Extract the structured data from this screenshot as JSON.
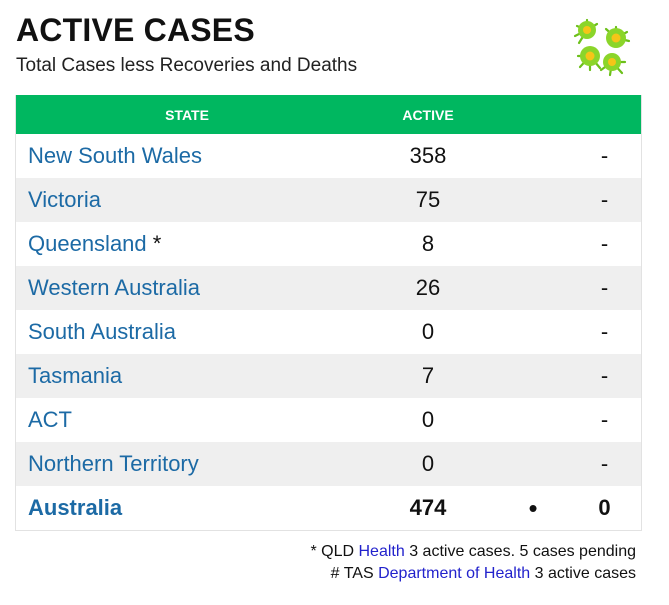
{
  "header": {
    "title": "ACTIVE CASES",
    "subtitle": "Total Cases less Recoveries and Deaths",
    "icon": "virus-icon",
    "icon_colors": {
      "body": "#8bd52a",
      "core": "#f5c518"
    }
  },
  "table": {
    "header_color": "#00b760",
    "columns": [
      "STATE",
      "ACTIVE"
    ],
    "rows": [
      {
        "state": "New South Wales",
        "mark": "",
        "active": "358",
        "change": "-"
      },
      {
        "state": "Victoria",
        "mark": "",
        "active": "75",
        "change": "-"
      },
      {
        "state": "Queensland",
        "mark": " *",
        "active": "8",
        "change": "-"
      },
      {
        "state": "Western Australia",
        "mark": "",
        "active": "26",
        "change": "-"
      },
      {
        "state": "South Australia",
        "mark": "",
        "active": "0",
        "change": "-"
      },
      {
        "state": "Tasmania",
        "mark": "",
        "active": "7",
        "change": "-"
      },
      {
        "state": "ACT",
        "mark": "",
        "active": "0",
        "change": "-"
      },
      {
        "state": "Northern Territory",
        "mark": "",
        "active": "0",
        "change": "-"
      }
    ],
    "total": {
      "state": "Australia",
      "active": "474",
      "bullet": "•",
      "change": "0"
    }
  },
  "footnotes": {
    "line1": {
      "prefix": "* QLD ",
      "link": "Health",
      "suffix": " 3 active cases. 5 cases pending"
    },
    "line2": {
      "prefix": "# TAS ",
      "link": "Department of Health",
      "suffix": " 3 active cases"
    }
  }
}
